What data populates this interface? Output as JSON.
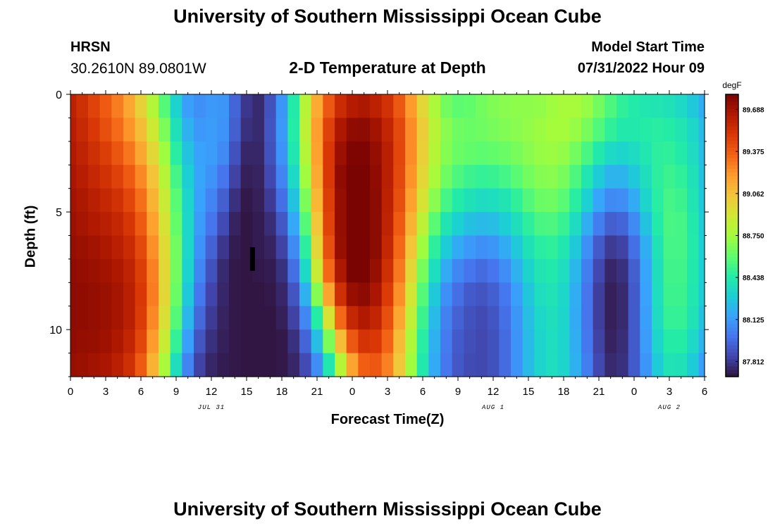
{
  "header": {
    "title": "University of Southern Mississippi Ocean Cube",
    "station": "HRSN",
    "coordinates": "30.2610N  89.0801W",
    "subtitle": "2-D Temperature at Depth",
    "model_start_label": "Model Start Time",
    "model_start_value": "07/31/2022 Hour 09"
  },
  "footer": {
    "title": "University of Southern Mississippi Ocean Cube"
  },
  "chart_data": {
    "type": "heatmap",
    "title": "2-D Temperature at Depth",
    "xlabel": "Forecast Time(Z)",
    "ylabel": "Depth (ft)",
    "x_hours": [
      0,
      1,
      2,
      3,
      4,
      5,
      6,
      7,
      8,
      9,
      10,
      11,
      12,
      13,
      14,
      15,
      16,
      17,
      18,
      19,
      20,
      21,
      22,
      23,
      24,
      25,
      26,
      27,
      28,
      29,
      30,
      31,
      32,
      33,
      34,
      35,
      36,
      37,
      38,
      39,
      40,
      41,
      42,
      43,
      44,
      45,
      46,
      47,
      48,
      49,
      50,
      51,
      52,
      53,
      54
    ],
    "xlim": [
      0,
      54
    ],
    "xticks_hours": [
      0,
      3,
      6,
      9,
      12,
      15,
      18,
      21,
      24,
      27,
      30,
      33,
      36,
      39,
      42,
      45,
      48,
      51,
      54
    ],
    "xtick_labels": [
      "0",
      "3",
      "6",
      "9",
      "12",
      "15",
      "18",
      "21",
      "0",
      "3",
      "6",
      "9",
      "12",
      "15",
      "18",
      "21",
      "0",
      "3",
      "6"
    ],
    "date_labels": [
      {
        "text": "JUL 31",
        "hour": 12
      },
      {
        "text": "AUG 1",
        "hour": 36
      },
      {
        "text": "AUG 2",
        "hour": 51
      }
    ],
    "depths_ft": [
      0,
      1,
      2,
      3,
      4,
      5,
      6,
      7,
      8,
      9,
      10,
      11
    ],
    "ylim": [
      0,
      12
    ],
    "yticks": [
      0,
      5,
      10
    ],
    "ytick_labels": [
      "0",
      "5",
      "10"
    ],
    "colorbar": {
      "unit": "degF",
      "min": 87.7,
      "max": 89.8,
      "tick_values": [
        87.812,
        88.125,
        88.438,
        88.75,
        89.062,
        89.375,
        89.688
      ],
      "tick_labels": [
        "87.812",
        "88.125",
        "88.438",
        "88.750",
        "89.062",
        "89.375",
        "89.688"
      ],
      "colors": [
        "#30123b",
        "#4145ab",
        "#4675ed",
        "#39a2fc",
        "#1bcfd4",
        "#24eca6",
        "#61fc6c",
        "#a4fc3b",
        "#d1e834",
        "#f3c63a",
        "#fe9b2d",
        "#f36315",
        "#d93806",
        "#b11901",
        "#7a0402"
      ]
    },
    "missing_marker": {
      "hour": 15.5,
      "depth_from": 6.5,
      "depth_to": 7.5
    },
    "temperature_degF_by_depth_and_hour": [
      [
        89.61,
        89.54,
        89.46,
        89.38,
        89.28,
        89.16,
        89.0,
        88.8,
        88.57,
        88.32,
        88.14,
        88.09,
        88.12,
        88.11,
        87.95,
        87.81,
        87.77,
        87.89,
        88.11,
        88.44,
        88.81,
        89.14,
        89.39,
        89.56,
        89.64,
        89.66,
        89.61,
        89.53,
        89.39,
        89.2,
        88.98,
        88.78,
        88.64,
        88.59,
        88.6,
        88.64,
        88.67,
        88.69,
        88.7,
        88.7,
        88.71,
        88.74,
        88.76,
        88.76,
        88.72,
        88.64,
        88.55,
        88.48,
        88.44,
        88.42,
        88.41,
        88.39,
        88.35,
        88.28,
        88.19
      ],
      [
        89.63,
        89.57,
        89.5,
        89.42,
        89.33,
        89.22,
        89.08,
        88.89,
        88.66,
        88.39,
        88.2,
        88.12,
        88.13,
        88.1,
        87.93,
        87.79,
        87.77,
        87.9,
        88.12,
        88.45,
        88.83,
        89.19,
        89.47,
        89.66,
        89.74,
        89.75,
        89.69,
        89.59,
        89.44,
        89.24,
        89.02,
        88.82,
        88.69,
        88.63,
        88.62,
        88.63,
        88.65,
        88.67,
        88.69,
        88.71,
        88.73,
        88.75,
        88.75,
        88.72,
        88.65,
        88.56,
        88.48,
        88.43,
        88.43,
        88.45,
        88.46,
        88.45,
        88.41,
        88.34,
        88.23
      ],
      [
        89.65,
        89.6,
        89.54,
        89.48,
        89.4,
        89.3,
        89.16,
        88.97,
        88.74,
        88.46,
        88.26,
        88.15,
        88.13,
        88.07,
        87.89,
        87.76,
        87.76,
        87.89,
        88.1,
        88.42,
        88.8,
        89.18,
        89.5,
        89.71,
        89.79,
        89.79,
        89.73,
        89.62,
        89.45,
        89.24,
        89.01,
        88.81,
        88.68,
        88.62,
        88.6,
        88.59,
        88.6,
        88.62,
        88.65,
        88.69,
        88.72,
        88.73,
        88.71,
        88.64,
        88.54,
        88.43,
        88.35,
        88.33,
        88.36,
        88.42,
        88.47,
        88.48,
        88.44,
        88.36,
        88.24
      ],
      [
        89.67,
        89.63,
        89.58,
        89.53,
        89.47,
        89.38,
        89.25,
        89.06,
        88.81,
        88.53,
        88.3,
        88.16,
        88.1,
        88.0,
        87.84,
        87.74,
        87.75,
        87.86,
        88.05,
        88.35,
        88.74,
        89.15,
        89.5,
        89.74,
        89.82,
        89.81,
        89.74,
        89.62,
        89.44,
        89.22,
        88.98,
        88.77,
        88.63,
        88.55,
        88.51,
        88.49,
        88.5,
        88.53,
        88.58,
        88.64,
        88.68,
        88.69,
        88.65,
        88.55,
        88.42,
        88.29,
        88.21,
        88.21,
        88.28,
        88.38,
        88.47,
        88.51,
        88.48,
        88.39,
        88.26
      ],
      [
        89.69,
        89.66,
        89.62,
        89.58,
        89.53,
        89.45,
        89.32,
        89.12,
        88.87,
        88.58,
        88.33,
        88.15,
        88.05,
        87.93,
        87.79,
        87.72,
        87.74,
        87.82,
        87.98,
        88.26,
        88.66,
        89.1,
        89.48,
        89.73,
        89.83,
        89.82,
        89.75,
        89.61,
        89.42,
        89.18,
        88.92,
        88.69,
        88.53,
        88.44,
        88.39,
        88.36,
        88.37,
        88.41,
        88.48,
        88.56,
        88.62,
        88.63,
        88.58,
        88.46,
        88.31,
        88.16,
        88.07,
        88.08,
        88.18,
        88.33,
        88.46,
        88.53,
        88.51,
        88.41,
        88.28
      ],
      [
        89.71,
        89.68,
        89.65,
        89.62,
        89.58,
        89.51,
        89.38,
        89.18,
        88.92,
        88.61,
        88.34,
        88.13,
        88.0,
        87.87,
        87.75,
        87.71,
        87.73,
        87.78,
        87.91,
        88.17,
        88.57,
        89.04,
        89.46,
        89.73,
        89.84,
        89.83,
        89.75,
        89.6,
        89.38,
        89.12,
        88.83,
        88.58,
        88.41,
        88.31,
        88.25,
        88.23,
        88.24,
        88.3,
        88.38,
        88.47,
        88.54,
        88.55,
        88.5,
        88.36,
        88.19,
        88.03,
        87.93,
        87.95,
        88.07,
        88.26,
        88.44,
        88.54,
        88.53,
        88.43,
        88.29
      ],
      [
        89.73,
        89.71,
        89.69,
        89.66,
        89.62,
        89.56,
        89.44,
        89.23,
        88.96,
        88.64,
        88.34,
        88.1,
        87.94,
        87.81,
        87.73,
        87.71,
        87.73,
        87.75,
        87.84,
        88.07,
        88.47,
        88.98,
        89.42,
        89.72,
        89.84,
        89.84,
        89.75,
        89.58,
        89.34,
        89.05,
        88.74,
        88.47,
        88.29,
        88.18,
        88.12,
        88.09,
        88.11,
        88.18,
        88.28,
        88.39,
        88.46,
        88.48,
        88.42,
        88.28,
        88.09,
        87.92,
        87.82,
        87.84,
        87.98,
        88.19,
        88.4,
        88.53,
        88.53,
        88.44,
        88.3
      ],
      [
        89.74,
        89.73,
        89.71,
        89.69,
        89.66,
        89.6,
        89.48,
        89.27,
        88.98,
        88.64,
        88.32,
        88.06,
        87.89,
        87.77,
        87.72,
        87.71,
        87.72,
        87.73,
        87.79,
        87.98,
        88.35,
        88.87,
        89.34,
        89.66,
        89.8,
        89.81,
        89.72,
        89.54,
        89.29,
        88.98,
        88.65,
        88.37,
        88.18,
        88.06,
        88.0,
        87.97,
        88.0,
        88.08,
        88.2,
        88.32,
        88.41,
        88.43,
        88.37,
        88.22,
        88.03,
        87.86,
        87.76,
        87.79,
        87.93,
        88.16,
        88.38,
        88.52,
        88.52,
        88.43,
        88.3
      ],
      [
        89.75,
        89.74,
        89.73,
        89.71,
        89.68,
        89.62,
        89.5,
        89.28,
        88.98,
        88.62,
        88.28,
        88.01,
        87.85,
        87.76,
        87.72,
        87.71,
        87.71,
        87.72,
        87.76,
        87.9,
        88.2,
        88.68,
        89.17,
        89.54,
        89.72,
        89.75,
        89.67,
        89.49,
        89.23,
        88.91,
        88.57,
        88.28,
        88.09,
        87.98,
        87.92,
        87.9,
        87.93,
        88.01,
        88.14,
        88.27,
        88.37,
        88.4,
        88.34,
        88.19,
        88.0,
        87.83,
        87.74,
        87.77,
        87.92,
        88.15,
        88.37,
        88.51,
        88.51,
        88.42,
        88.29
      ],
      [
        89.75,
        89.74,
        89.73,
        89.71,
        89.68,
        89.62,
        89.49,
        89.25,
        88.94,
        88.57,
        88.22,
        87.96,
        87.82,
        87.75,
        87.72,
        87.71,
        87.71,
        87.71,
        87.74,
        87.84,
        88.06,
        88.45,
        88.92,
        89.34,
        89.58,
        89.65,
        89.59,
        89.42,
        89.16,
        88.84,
        88.51,
        88.23,
        88.04,
        87.94,
        87.89,
        87.87,
        87.9,
        87.98,
        88.11,
        88.24,
        88.34,
        88.38,
        88.33,
        88.18,
        88.0,
        87.83,
        87.74,
        87.77,
        87.92,
        88.14,
        88.36,
        88.49,
        88.49,
        88.4,
        88.26
      ],
      [
        89.74,
        89.73,
        89.72,
        89.7,
        89.66,
        89.59,
        89.45,
        89.2,
        88.87,
        88.49,
        88.14,
        87.9,
        87.79,
        87.74,
        87.72,
        87.71,
        87.71,
        87.71,
        87.72,
        87.79,
        87.95,
        88.24,
        88.66,
        89.08,
        89.39,
        89.52,
        89.5,
        89.35,
        89.09,
        88.78,
        88.46,
        88.2,
        88.02,
        87.92,
        87.88,
        87.86,
        87.89,
        87.97,
        88.1,
        88.23,
        88.33,
        88.37,
        88.33,
        88.19,
        88.01,
        87.84,
        87.75,
        87.78,
        87.92,
        88.13,
        88.33,
        88.45,
        88.45,
        88.35,
        88.21
      ],
      [
        89.72,
        89.71,
        89.69,
        89.67,
        89.62,
        89.54,
        89.38,
        89.12,
        88.77,
        88.38,
        88.05,
        87.84,
        87.76,
        87.73,
        87.72,
        87.71,
        87.71,
        87.71,
        87.72,
        87.76,
        87.87,
        88.08,
        88.42,
        88.81,
        89.17,
        89.37,
        89.39,
        89.27,
        89.04,
        88.74,
        88.43,
        88.18,
        88.01,
        87.91,
        87.87,
        87.86,
        87.89,
        87.97,
        88.1,
        88.23,
        88.33,
        88.37,
        88.33,
        88.2,
        88.03,
        87.86,
        87.77,
        87.79,
        87.92,
        88.11,
        88.29,
        88.4,
        88.39,
        88.29,
        88.14
      ]
    ]
  }
}
